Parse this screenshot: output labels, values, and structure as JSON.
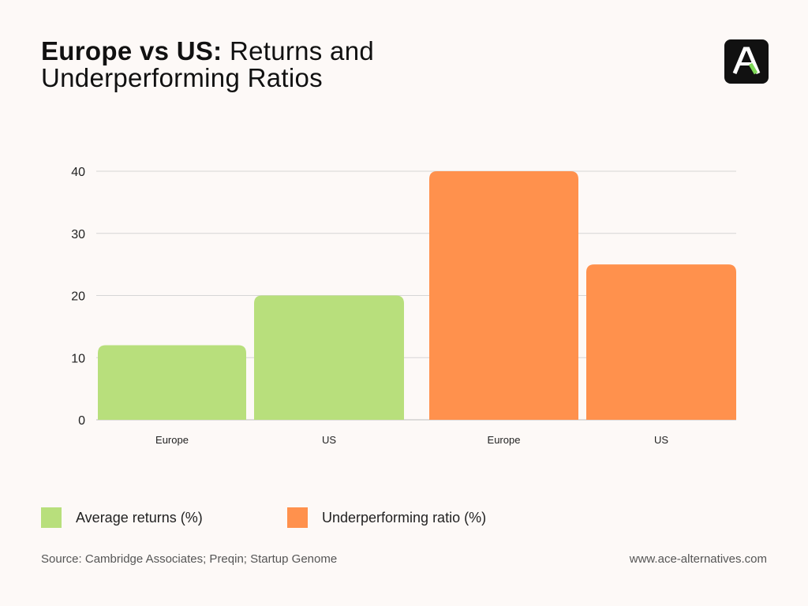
{
  "header": {
    "title_bold": "Europe vs US:",
    "title_rest": "Returns and",
    "title_line2": "Underperforming Ratios",
    "logo_icon": "ace-logo-icon"
  },
  "chart_data": {
    "type": "bar",
    "categories": [
      "Europe",
      "US",
      "Europe",
      "US"
    ],
    "series": [
      {
        "name": "Average returns (%)",
        "color": "#b8df7c",
        "values": [
          12,
          20,
          null,
          null
        ]
      },
      {
        "name": "Underperforming ratio (%)",
        "color": "#ff914d",
        "values": [
          null,
          null,
          40,
          25
        ]
      }
    ],
    "yticks": [
      0,
      10,
      20,
      30,
      40
    ],
    "ylim": [
      0,
      40
    ],
    "grid": true,
    "legend_position": "bottom-left"
  },
  "legend": {
    "items": [
      {
        "label": "Average returns (%)",
        "color": "#b8df7c"
      },
      {
        "label": "Underperforming ratio (%)",
        "color": "#ff914d"
      }
    ]
  },
  "footer": {
    "source": "Source: Cambridge Associates; Preqin; Startup Genome",
    "website": "www.ace-alternatives.com"
  }
}
